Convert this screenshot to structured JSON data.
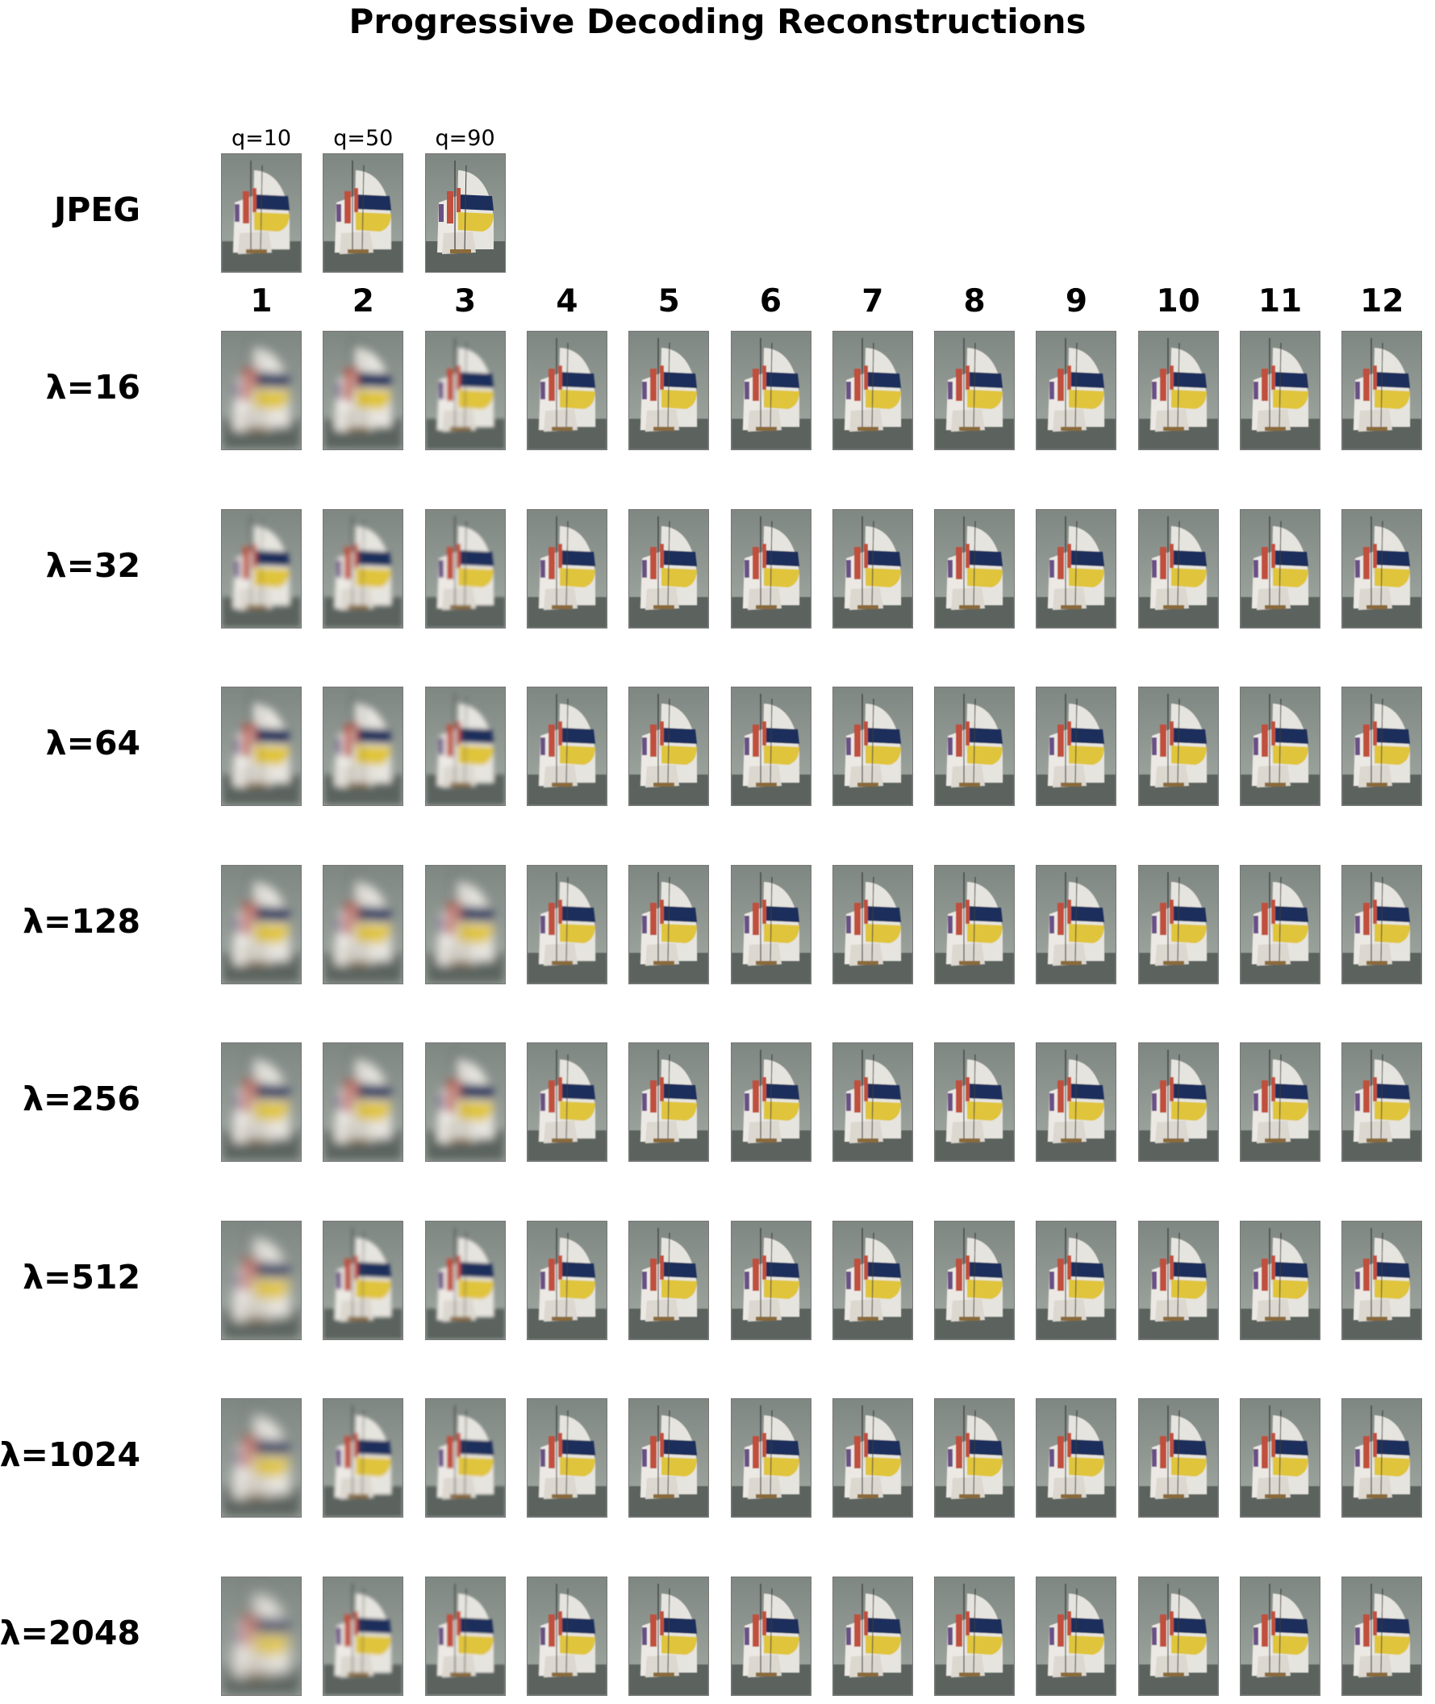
{
  "title": "Progressive Decoding Reconstructions",
  "jpeg_row": {
    "label": "JPEG",
    "qualities": [
      "q=10",
      "q=50",
      "q=90"
    ]
  },
  "columns": [
    "1",
    "2",
    "3",
    "4",
    "5",
    "6",
    "7",
    "8",
    "9",
    "10",
    "11",
    "12"
  ],
  "lambda_rows": [
    "λ=16",
    "λ=32",
    "λ=64",
    "λ=128",
    "λ=256",
    "λ=512",
    "λ=1024",
    "λ=2048"
  ],
  "thumbnail_subject": "sailboat-spinnaker-icon",
  "colors": {
    "sky": "#8a928c",
    "sea": "#5c635f",
    "sail": "#e6e4de",
    "navy": "#1f2f5c",
    "yellow": "#e0c43a",
    "red": "#c0503c",
    "purple": "#6a4f86"
  }
}
